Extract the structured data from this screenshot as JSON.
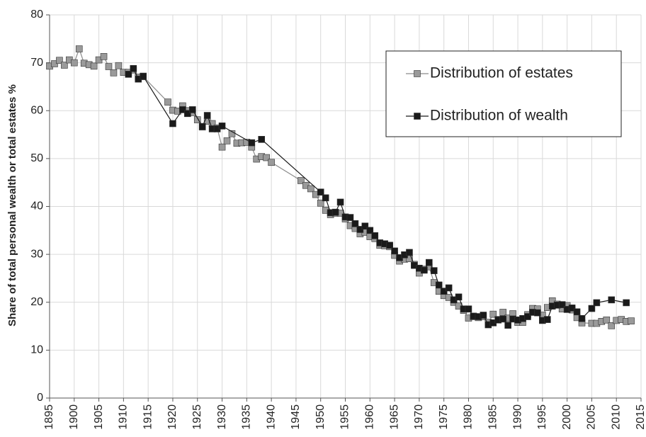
{
  "chart_data": {
    "type": "line",
    "ylabel": "Share of total personal wealth or total estates %",
    "xlim": [
      1895,
      2015
    ],
    "xticks": [
      1895,
      1900,
      1905,
      1910,
      1915,
      1920,
      1925,
      1930,
      1935,
      1940,
      1945,
      1950,
      1955,
      1960,
      1965,
      1970,
      1975,
      1980,
      1985,
      1990,
      1995,
      2000,
      2005,
      2010,
      2015
    ],
    "ylim": [
      0,
      80
    ],
    "yticks": [
      0,
      10,
      20,
      30,
      40,
      50,
      60,
      70,
      80
    ],
    "grid": true,
    "legend": "upper right",
    "series": [
      {
        "name": "Distribution of estates",
        "color": "#8c8c8c",
        "marker_fill": "#9a9a9a",
        "x": [
          1895,
          1896,
          1897,
          1898,
          1899,
          1900,
          1901,
          1902,
          1903,
          1904,
          1905,
          1906,
          1907,
          1908,
          1909,
          1910,
          1911,
          1912,
          1913,
          1914,
          1919,
          1920,
          1921,
          1922,
          1923,
          1924,
          1925,
          1926,
          1927,
          1928,
          1929,
          1930,
          1931,
          1932,
          1933,
          1934,
          1935,
          1936,
          1937,
          1938,
          1939,
          1940,
          1946,
          1947,
          1948,
          1949,
          1950,
          1951,
          1952,
          1953,
          1954,
          1955,
          1956,
          1957,
          1958,
          1959,
          1960,
          1961,
          1962,
          1963,
          1964,
          1965,
          1966,
          1967,
          1968,
          1969,
          1970,
          1971,
          1972,
          1973,
          1974,
          1975,
          1976,
          1977,
          1978,
          1979,
          1980,
          1981,
          1982,
          1983,
          1984,
          1985,
          1986,
          1987,
          1988,
          1989,
          1990,
          1991,
          1992,
          1993,
          1994,
          1995,
          1996,
          1997,
          1998,
          1999,
          2000,
          2001,
          2002,
          2003,
          2005,
          2006,
          2007,
          2008,
          2009,
          2010,
          2011,
          2012,
          2013
        ],
        "values": [
          69.3,
          69.8,
          70.5,
          69.5,
          70.6,
          70.0,
          72.9,
          69.9,
          69.6,
          69.3,
          70.6,
          71.3,
          69.2,
          67.9,
          69.4,
          68.0,
          68.0,
          68.5,
          67.0,
          67.1,
          61.8,
          60.1,
          59.9,
          61.0,
          60.0,
          59.6,
          58.1,
          56.6,
          57.8,
          57.3,
          56.4,
          52.4,
          53.7,
          55.2,
          53.2,
          53.3,
          53.4,
          52.4,
          49.9,
          50.4,
          50.2,
          49.2,
          45.4,
          44.4,
          43.7,
          42.5,
          40.7,
          39.2,
          38.3,
          38.6,
          38.6,
          37.4,
          36.0,
          35.4,
          34.3,
          34.6,
          33.7,
          33.3,
          31.9,
          31.8,
          31.6,
          29.8,
          28.6,
          29.0,
          29.1,
          27.9,
          26.1,
          26.9,
          27.4,
          24.1,
          22.3,
          21.4,
          21.0,
          20.0,
          19.2,
          18.3,
          16.7,
          17.0,
          16.8,
          17.0,
          15.8,
          17.5,
          16.4,
          17.9,
          16.7,
          17.6,
          15.8,
          15.8,
          17.4,
          18.7,
          18.6,
          17.3,
          18.9,
          20.3,
          19.6,
          18.6,
          19.3,
          18.4,
          16.8,
          15.7,
          15.6,
          15.6,
          16.0,
          16.3,
          15.1,
          16.2,
          16.4,
          16.0,
          16.1
        ]
      },
      {
        "name": "Distribution of wealth",
        "color": "#1a1a1a",
        "marker_fill": "#1a1a1a",
        "x": [
          1911,
          1912,
          1913,
          1914,
          1920,
          1922,
          1923,
          1924,
          1926,
          1927,
          1928,
          1929,
          1930,
          1936,
          1938,
          1950,
          1951,
          1952,
          1953,
          1954,
          1955,
          1956,
          1957,
          1958,
          1959,
          1960,
          1961,
          1962,
          1963,
          1964,
          1965,
          1966,
          1967,
          1968,
          1969,
          1970,
          1971,
          1972,
          1973,
          1974,
          1975,
          1976,
          1977,
          1978,
          1979,
          1980,
          1981,
          1982,
          1983,
          1984,
          1985,
          1986,
          1987,
          1988,
          1989,
          1990,
          1991,
          1992,
          1993,
          1994,
          1995,
          1996,
          1997,
          1998,
          1999,
          2000,
          2001,
          2002,
          2003,
          2005,
          2006,
          2009,
          2012
        ],
        "values": [
          67.6,
          68.8,
          66.6,
          67.2,
          57.3,
          60.2,
          59.4,
          60.2,
          56.7,
          59.0,
          56.2,
          56.2,
          56.8,
          53.3,
          54.0,
          43.0,
          41.8,
          38.7,
          38.8,
          40.9,
          37.8,
          37.7,
          36.4,
          35.2,
          35.9,
          35.0,
          33.9,
          32.4,
          32.2,
          31.9,
          30.7,
          29.3,
          29.9,
          30.4,
          27.7,
          27.1,
          26.7,
          28.3,
          26.6,
          23.6,
          22.3,
          23.0,
          20.5,
          21.1,
          18.6,
          18.6,
          17.1,
          17.0,
          17.3,
          15.3,
          15.7,
          16.3,
          16.5,
          15.2,
          16.5,
          16.3,
          16.6,
          17.0,
          17.9,
          17.8,
          16.2,
          16.4,
          19.2,
          19.4,
          19.5,
          18.5,
          18.8,
          18.0,
          16.6,
          18.7,
          19.9,
          20.5,
          19.9
        ]
      }
    ]
  }
}
